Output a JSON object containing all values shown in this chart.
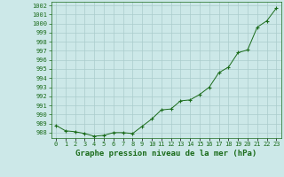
{
  "x": [
    0,
    1,
    2,
    3,
    4,
    5,
    6,
    7,
    8,
    9,
    10,
    11,
    12,
    13,
    14,
    15,
    16,
    17,
    18,
    19,
    20,
    21,
    22,
    23
  ],
  "y": [
    988.8,
    988.2,
    988.1,
    987.9,
    987.6,
    987.7,
    988.0,
    988.0,
    987.9,
    988.7,
    989.5,
    990.5,
    990.6,
    991.5,
    991.6,
    992.2,
    993.0,
    994.6,
    995.2,
    996.8,
    997.1,
    999.6,
    1000.3,
    1001.7
  ],
  "line_color": "#1a6b1a",
  "marker_color": "#1a6b1a",
  "bg_color": "#cce8e8",
  "grid_color": "#aacccc",
  "title": "Graphe pression niveau de la mer (hPa)",
  "xlabel_ticks": [
    "0",
    "1",
    "2",
    "3",
    "4",
    "5",
    "6",
    "7",
    "8",
    "9",
    "10",
    "11",
    "12",
    "13",
    "14",
    "15",
    "16",
    "17",
    "18",
    "19",
    "20",
    "21",
    "22",
    "23"
  ],
  "ylim": [
    987.4,
    1002.4
  ],
  "ytick_min": 988,
  "ytick_max": 1002,
  "title_fontsize": 6.5,
  "tick_fontsize": 5.0,
  "title_color": "#1a6b1a",
  "tick_color": "#1a6b1a"
}
